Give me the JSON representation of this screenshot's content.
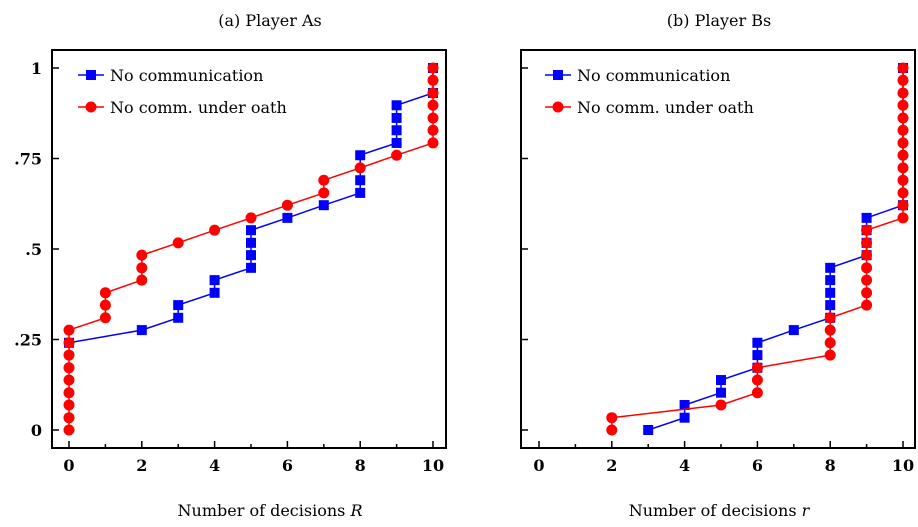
{
  "chart_data": [
    {
      "type": "line",
      "title": "(a) Player As",
      "xlabel": "Number of decisions R",
      "xlabel_text": "Number of decisions",
      "xlabel_var": "R",
      "ylabel": "",
      "xlim": [
        0,
        10
      ],
      "ylim": [
        0,
        1
      ],
      "xticks": [
        "0",
        "2",
        "4",
        "6",
        "8",
        "10"
      ],
      "yticks": [
        {
          "value": 0,
          "label": "0"
        },
        {
          "value": 0.25,
          "label": ".25"
        },
        {
          "value": 0.5,
          "label": ".5"
        },
        {
          "value": 0.75,
          "label": ".75"
        },
        {
          "value": 1,
          "label": "1"
        }
      ],
      "legend_position": "top-left",
      "series": [
        {
          "name": "No communication",
          "color": "#0000ff",
          "marker": "square",
          "points": [
            [
              0,
              0.241
            ],
            [
              2,
              0.276
            ],
            [
              3,
              0.31
            ],
            [
              3,
              0.345
            ],
            [
              4,
              0.379
            ],
            [
              4,
              0.414
            ],
            [
              5,
              0.448
            ],
            [
              5,
              0.483
            ],
            [
              5,
              0.517
            ],
            [
              5,
              0.552
            ],
            [
              6,
              0.586
            ],
            [
              7,
              0.621
            ],
            [
              8,
              0.655
            ],
            [
              8,
              0.69
            ],
            [
              8,
              0.759
            ],
            [
              9,
              0.793
            ],
            [
              9,
              0.828
            ],
            [
              9,
              0.862
            ],
            [
              9,
              0.897
            ],
            [
              10,
              0.931
            ],
            [
              10,
              1.0
            ]
          ]
        },
        {
          "name": "No comm. under oath",
          "color": "#ff0000",
          "marker": "circle",
          "points": [
            [
              0,
              0.0
            ],
            [
              0,
              0.034
            ],
            [
              0,
              0.069
            ],
            [
              0,
              0.103
            ],
            [
              0,
              0.138
            ],
            [
              0,
              0.172
            ],
            [
              0,
              0.207
            ],
            [
              0,
              0.241
            ],
            [
              0,
              0.276
            ],
            [
              1,
              0.31
            ],
            [
              1,
              0.345
            ],
            [
              1,
              0.379
            ],
            [
              2,
              0.414
            ],
            [
              2,
              0.448
            ],
            [
              2,
              0.483
            ],
            [
              3,
              0.517
            ],
            [
              4,
              0.552
            ],
            [
              5,
              0.586
            ],
            [
              6,
              0.621
            ],
            [
              7,
              0.655
            ],
            [
              7,
              0.69
            ],
            [
              8,
              0.724
            ],
            [
              9,
              0.759
            ],
            [
              10,
              0.793
            ],
            [
              10,
              0.828
            ],
            [
              10,
              0.862
            ],
            [
              10,
              0.897
            ],
            [
              10,
              0.931
            ],
            [
              10,
              0.966
            ],
            [
              10,
              1.0
            ]
          ]
        }
      ]
    },
    {
      "type": "line",
      "title": "(b) Player Bs",
      "xlabel": "Number of decisions r",
      "xlabel_text": "Number of decisions",
      "xlabel_var": "r",
      "ylabel": "",
      "xlim": [
        0,
        10
      ],
      "ylim": [
        0,
        1
      ],
      "xticks": [
        "0",
        "2",
        "4",
        "6",
        "8",
        "10"
      ],
      "legend_position": "top-left",
      "series": [
        {
          "name": "No communication",
          "color": "#0000ff",
          "marker": "square",
          "points": [
            [
              3,
              0.0
            ],
            [
              4,
              0.034
            ],
            [
              4,
              0.069
            ],
            [
              5,
              0.103
            ],
            [
              5,
              0.138
            ],
            [
              6,
              0.172
            ],
            [
              6,
              0.207
            ],
            [
              6,
              0.241
            ],
            [
              7,
              0.276
            ],
            [
              8,
              0.31
            ],
            [
              8,
              0.345
            ],
            [
              8,
              0.379
            ],
            [
              8,
              0.414
            ],
            [
              8,
              0.448
            ],
            [
              9,
              0.483
            ],
            [
              9,
              0.517
            ],
            [
              9,
              0.552
            ],
            [
              9,
              0.586
            ],
            [
              10,
              0.621
            ],
            [
              10,
              1.0
            ]
          ]
        },
        {
          "name": "No comm. under oath",
          "color": "#ff0000",
          "marker": "circle",
          "points": [
            [
              2,
              0.0
            ],
            [
              2,
              0.034
            ],
            [
              5,
              0.069
            ],
            [
              6,
              0.103
            ],
            [
              6,
              0.138
            ],
            [
              6,
              0.172
            ],
            [
              8,
              0.207
            ],
            [
              8,
              0.241
            ],
            [
              8,
              0.276
            ],
            [
              8,
              0.31
            ],
            [
              9,
              0.345
            ],
            [
              9,
              0.379
            ],
            [
              9,
              0.414
            ],
            [
              9,
              0.448
            ],
            [
              9,
              0.483
            ],
            [
              9,
              0.517
            ],
            [
              9,
              0.552
            ],
            [
              10,
              0.586
            ],
            [
              10,
              0.621
            ],
            [
              10,
              0.655
            ],
            [
              10,
              0.69
            ],
            [
              10,
              0.724
            ],
            [
              10,
              0.759
            ],
            [
              10,
              0.793
            ],
            [
              10,
              0.828
            ],
            [
              10,
              0.862
            ],
            [
              10,
              0.897
            ],
            [
              10,
              0.931
            ],
            [
              10,
              0.966
            ],
            [
              10,
              1.0
            ]
          ]
        }
      ]
    }
  ]
}
